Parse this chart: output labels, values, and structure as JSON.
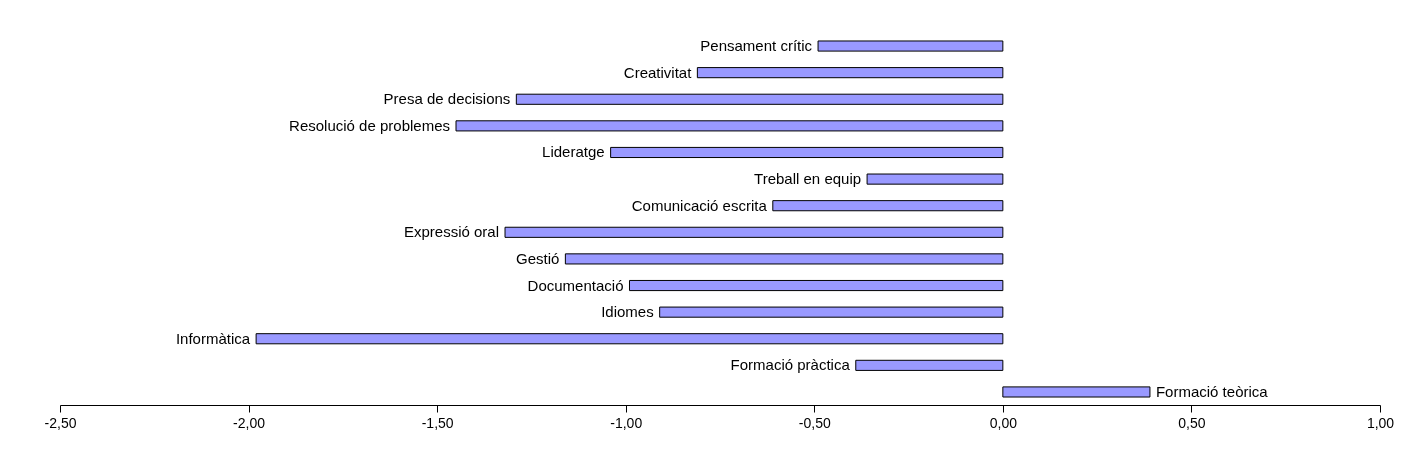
{
  "chart_data": {
    "type": "bar",
    "orientation": "horizontal",
    "categories": [
      "Pensament crític",
      "Creativitat",
      "Presa de decisions",
      "Resolució de problemes",
      "Lideratge",
      "Treball en equip",
      "Comunicació escrita",
      "Expressió oral",
      "Gestió",
      "Documentació",
      "Idiomes",
      "Informàtica",
      "Formació pràctica",
      "Formació teòrica"
    ],
    "values": [
      -0.49,
      -0.81,
      -1.29,
      -1.45,
      -1.04,
      -0.36,
      -0.61,
      -1.32,
      -1.16,
      -0.99,
      -0.91,
      -1.98,
      -0.39,
      0.39
    ],
    "color": "#9999ff",
    "xlim": [
      -2.5,
      1.0
    ],
    "xticks": [
      {
        "value": -2.5,
        "label": "-2,50"
      },
      {
        "value": -2.0,
        "label": "-2,00"
      },
      {
        "value": -1.5,
        "label": "-1,50"
      },
      {
        "value": -1.0,
        "label": "-1,00"
      },
      {
        "value": -0.5,
        "label": "-0,50"
      },
      {
        "value": 0,
        "label": "0,00"
      },
      {
        "value": 0.5,
        "label": "0,50"
      },
      {
        "value": 1.0,
        "label": "1,00"
      }
    ],
    "grid": false
  }
}
